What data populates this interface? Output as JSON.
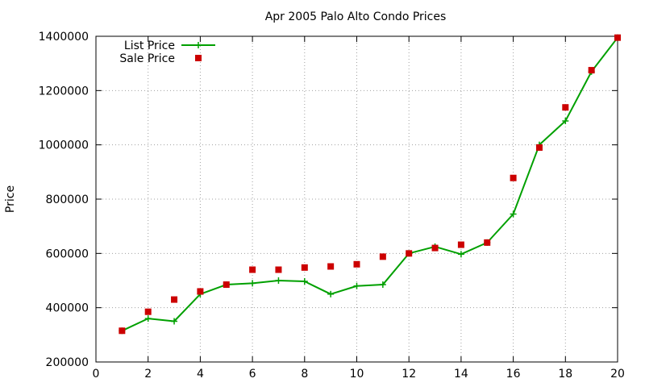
{
  "chart_data": {
    "type": "line",
    "title": "Apr 2005 Palo Alto Condo Prices",
    "xlabel": "",
    "ylabel": "Price",
    "xlim": [
      0,
      20
    ],
    "ylim": [
      200000,
      1400000
    ],
    "xticks": [
      0,
      2,
      4,
      6,
      8,
      10,
      12,
      14,
      16,
      18,
      20
    ],
    "yticks": [
      200000,
      400000,
      600000,
      800000,
      1000000,
      1200000,
      1400000
    ],
    "grid": true,
    "legend_position": "top-left",
    "series": [
      {
        "name": "List Price",
        "style": "line-with-plus-markers",
        "color": "#00a000",
        "x": [
          1,
          2,
          3,
          4,
          5,
          6,
          7,
          8,
          9,
          10,
          11,
          12,
          13,
          14,
          15,
          16,
          17,
          18,
          19,
          20
        ],
        "y": [
          315000,
          360000,
          350000,
          450000,
          485000,
          490000,
          500000,
          497000,
          450000,
          480000,
          485000,
          600000,
          625000,
          597000,
          640000,
          745000,
          1000000,
          1088000,
          1270000,
          1395000
        ]
      },
      {
        "name": "Sale Price",
        "style": "square-markers",
        "color": "#cc0000",
        "x": [
          1,
          2,
          3,
          4,
          5,
          6,
          7,
          8,
          9,
          10,
          11,
          12,
          13,
          14,
          15,
          16,
          17,
          18,
          19,
          20
        ],
        "y": [
          315000,
          385000,
          430000,
          460000,
          485000,
          540000,
          540000,
          548000,
          552000,
          560000,
          588000,
          600000,
          620000,
          632000,
          640000,
          878000,
          990000,
          1138000,
          1275000,
          1395000
        ]
      }
    ]
  }
}
